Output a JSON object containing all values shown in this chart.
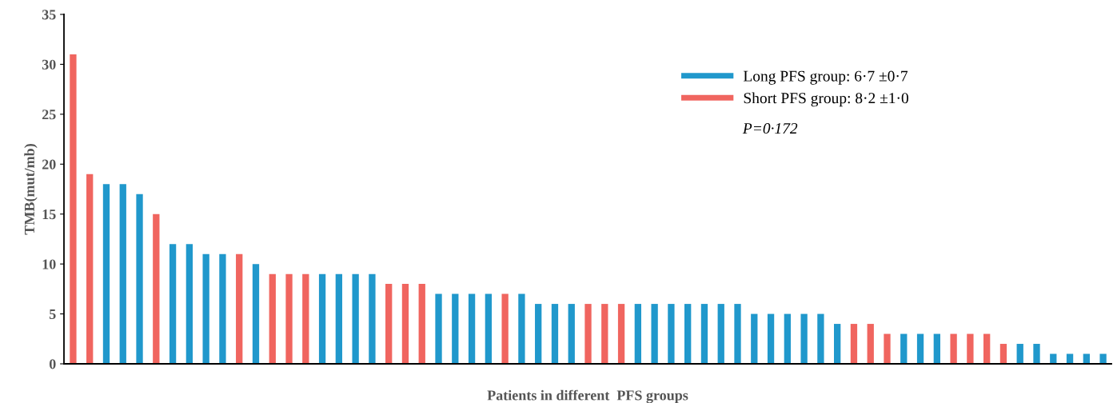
{
  "chart_data": {
    "type": "bar",
    "xlabel": "Patients in different  PFS groups",
    "ylabel": "TMB(mut/mb)",
    "categories": [
      null,
      null,
      null,
      null,
      null,
      null,
      null,
      null,
      null,
      null,
      null,
      null,
      null,
      null,
      null,
      null,
      null,
      null,
      null,
      null,
      null,
      null,
      null,
      null,
      null,
      null,
      null,
      null,
      null,
      null,
      null,
      null,
      null,
      null,
      null,
      null,
      null,
      null,
      null,
      null,
      null,
      null,
      null,
      null,
      null,
      null,
      null,
      null,
      null,
      null,
      null,
      null,
      null,
      null,
      null,
      null,
      null,
      null,
      null,
      null,
      null,
      null,
      null
    ],
    "series": [
      {
        "name": "Long PFS group: 6·7 ±0·7",
        "color": "#2098cc",
        "values": [
          null,
          null,
          18,
          18,
          17,
          null,
          12,
          12,
          11,
          11,
          null,
          10,
          null,
          null,
          null,
          9,
          9,
          9,
          9,
          null,
          null,
          null,
          7,
          7,
          7,
          7,
          null,
          7,
          6,
          6,
          6,
          null,
          null,
          null,
          6,
          6,
          6,
          6,
          6,
          6,
          6,
          5,
          5,
          5,
          5,
          5,
          4,
          null,
          null,
          null,
          3,
          3,
          3,
          null,
          null,
          null,
          null,
          2,
          2,
          1,
          1,
          1,
          1
        ]
      },
      {
        "name": "Short PFS group: 8·2 ±1·0",
        "color": "#f0655f",
        "values": [
          31,
          19,
          null,
          null,
          null,
          15,
          null,
          null,
          null,
          null,
          11,
          null,
          9,
          9,
          9,
          null,
          null,
          null,
          null,
          8,
          8,
          8,
          null,
          null,
          null,
          null,
          7,
          null,
          null,
          null,
          null,
          6,
          6,
          6,
          null,
          null,
          null,
          null,
          null,
          null,
          null,
          null,
          null,
          null,
          null,
          null,
          null,
          4,
          4,
          3,
          null,
          null,
          null,
          3,
          3,
          3,
          2,
          null,
          null,
          null,
          null,
          null,
          null
        ]
      }
    ],
    "ylim": [
      0,
      35
    ],
    "yticks": [
      0,
      5,
      10,
      15,
      20,
      25,
      30,
      35
    ],
    "legend": "top right",
    "grid": false,
    "annotations": [
      "P=0·172"
    ]
  }
}
